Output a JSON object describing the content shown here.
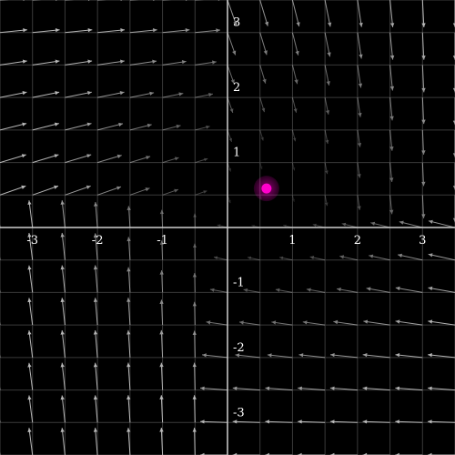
{
  "plot": {
    "background": "#000000",
    "grid_color": "#3a3a3a",
    "axis_color": "#cfcfcf",
    "arrow_color": "#cccccc",
    "marker_color": "#ff00cc",
    "x_range": [
      -3.5,
      3.5
    ],
    "y_range": [
      -3.5,
      3.5
    ],
    "grid_step": 0.5,
    "arrow_step": 0.5
  },
  "x_ticks": [
    {
      "value": -3,
      "label": "-3"
    },
    {
      "value": -2,
      "label": "-2"
    },
    {
      "value": -1,
      "label": "-1"
    },
    {
      "value": 1,
      "label": "1"
    },
    {
      "value": 2,
      "label": "2"
    },
    {
      "value": 3,
      "label": "3"
    }
  ],
  "y_ticks": [
    {
      "value": 3,
      "label": "3"
    },
    {
      "value": 2,
      "label": "2"
    },
    {
      "value": 1,
      "label": "1"
    },
    {
      "value": -1,
      "label": "-1"
    },
    {
      "value": -2,
      "label": "-2"
    },
    {
      "value": -3,
      "label": "-3"
    }
  ],
  "marker": {
    "x": 0.6,
    "y": 0.6
  }
}
